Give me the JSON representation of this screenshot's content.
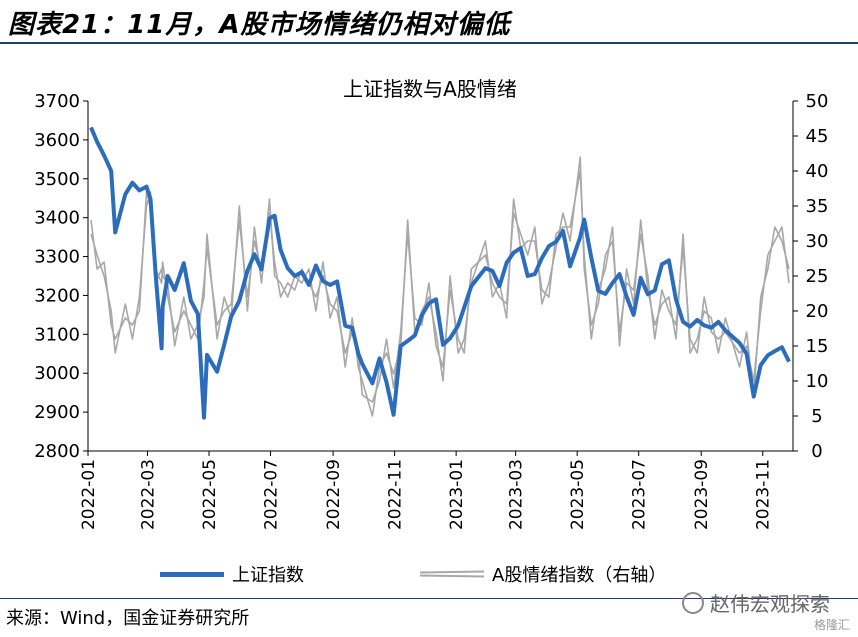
{
  "header": {
    "figure_title": "图表21：11月，A股市场情绪仍相对偏低"
  },
  "chart_data": {
    "type": "line",
    "title": "上证指数与A股情绪",
    "x_tick_labels": [
      "2022-01",
      "2022-03",
      "2022-05",
      "2022-07",
      "2022-09",
      "2022-11",
      "2023-01",
      "2023-03",
      "2023-05",
      "2023-07",
      "2023-09",
      "2023-11"
    ],
    "x_range": [
      "2022-01-01",
      "2023-12-01"
    ],
    "left_axis": {
      "ylim": [
        2800,
        3700
      ],
      "ticks": [
        2800,
        2900,
        3000,
        3100,
        3200,
        3300,
        3400,
        3500,
        3600,
        3700
      ]
    },
    "right_axis": {
      "ylim": [
        0,
        50
      ],
      "ticks": [
        0,
        5,
        10,
        15,
        20,
        25,
        30,
        35,
        40,
        45,
        50
      ]
    },
    "grid": false,
    "legend_position": "bottom",
    "series": [
      {
        "name": "上证指数",
        "axis": "left",
        "color": "#2b6cbd",
        "x": [
          "2022-01-04",
          "2022-01-10",
          "2022-01-17",
          "2022-01-24",
          "2022-01-28",
          "2022-02-07",
          "2022-02-14",
          "2022-02-21",
          "2022-02-28",
          "2022-03-04",
          "2022-03-09",
          "2022-03-15",
          "2022-03-16",
          "2022-03-21",
          "2022-03-28",
          "2022-04-06",
          "2022-04-13",
          "2022-04-20",
          "2022-04-26",
          "2022-04-29",
          "2022-05-09",
          "2022-05-16",
          "2022-05-23",
          "2022-05-31",
          "2022-06-08",
          "2022-06-15",
          "2022-06-22",
          "2022-06-30",
          "2022-07-05",
          "2022-07-11",
          "2022-07-18",
          "2022-07-25",
          "2022-08-01",
          "2022-08-08",
          "2022-08-15",
          "2022-08-22",
          "2022-08-29",
          "2022-09-05",
          "2022-09-13",
          "2022-09-20",
          "2022-09-26",
          "2022-09-30",
          "2022-10-10",
          "2022-10-17",
          "2022-10-24",
          "2022-10-31",
          "2022-11-07",
          "2022-11-14",
          "2022-11-21",
          "2022-11-28",
          "2022-12-05",
          "2022-12-12",
          "2022-12-19",
          "2022-12-26",
          "2023-01-03",
          "2023-01-09",
          "2023-01-16",
          "2023-01-30",
          "2023-02-06",
          "2023-02-13",
          "2023-02-20",
          "2023-02-27",
          "2023-03-06",
          "2023-03-13",
          "2023-03-20",
          "2023-03-27",
          "2023-04-03",
          "2023-04-10",
          "2023-04-17",
          "2023-04-24",
          "2023-05-04",
          "2023-05-08",
          "2023-05-15",
          "2023-05-22",
          "2023-05-29",
          "2023-06-05",
          "2023-06-12",
          "2023-06-19",
          "2023-06-26",
          "2023-07-03",
          "2023-07-10",
          "2023-07-17",
          "2023-07-24",
          "2023-07-31",
          "2023-08-07",
          "2023-08-14",
          "2023-08-21",
          "2023-08-28",
          "2023-09-04",
          "2023-09-11",
          "2023-09-18",
          "2023-09-25",
          "2023-10-09",
          "2023-10-16",
          "2023-10-23",
          "2023-10-30",
          "2023-11-06",
          "2023-11-13",
          "2023-11-20",
          "2023-11-27"
        ],
        "values": [
          3632,
          3595,
          3560,
          3520,
          3362,
          3460,
          3490,
          3470,
          3480,
          3448,
          3256,
          3064,
          3170,
          3250,
          3214,
          3283,
          3186,
          3152,
          2886,
          3047,
          3004,
          3073,
          3146,
          3186,
          3263,
          3306,
          3267,
          3398,
          3405,
          3317,
          3270,
          3250,
          3260,
          3227,
          3277,
          3237,
          3227,
          3236,
          3122,
          3117,
          3051,
          3024,
          2974,
          3038,
          2977,
          2893,
          3070,
          3083,
          3097,
          3149,
          3180,
          3190,
          3073,
          3090,
          3123,
          3169,
          3224,
          3270,
          3263,
          3224,
          3284,
          3310,
          3322,
          3250,
          3255,
          3296,
          3327,
          3338,
          3366,
          3275,
          3350,
          3395,
          3297,
          3212,
          3204,
          3232,
          3255,
          3197,
          3150,
          3245,
          3203,
          3213,
          3280,
          3290,
          3189,
          3132,
          3120,
          3137,
          3123,
          3117,
          3132,
          3110,
          3078,
          3050,
          2940,
          3021,
          3046,
          3057,
          3067,
          3030
        ]
      },
      {
        "name": "A股情绪指数（右轴）",
        "axis": "right",
        "color": "#a8a8a8",
        "x": [
          "2022-01-04",
          "2022-01-10",
          "2022-01-17",
          "2022-01-24",
          "2022-01-28",
          "2022-02-07",
          "2022-02-14",
          "2022-02-21",
          "2022-02-28",
          "2022-03-04",
          "2022-03-09",
          "2022-03-15",
          "2022-03-16",
          "2022-03-21",
          "2022-03-28",
          "2022-04-06",
          "2022-04-13",
          "2022-04-20",
          "2022-04-26",
          "2022-04-29",
          "2022-05-09",
          "2022-05-16",
          "2022-05-23",
          "2022-05-31",
          "2022-06-08",
          "2022-06-15",
          "2022-06-22",
          "2022-06-30",
          "2022-07-05",
          "2022-07-11",
          "2022-07-18",
          "2022-07-25",
          "2022-08-01",
          "2022-08-08",
          "2022-08-15",
          "2022-08-22",
          "2022-08-29",
          "2022-09-05",
          "2022-09-13",
          "2022-09-20",
          "2022-09-26",
          "2022-09-30",
          "2022-10-10",
          "2022-10-17",
          "2022-10-24",
          "2022-10-31",
          "2022-11-07",
          "2022-11-14",
          "2022-11-21",
          "2022-11-28",
          "2022-12-05",
          "2022-12-12",
          "2022-12-19",
          "2022-12-26",
          "2023-01-03",
          "2023-01-09",
          "2023-01-16",
          "2023-01-30",
          "2023-02-06",
          "2023-02-13",
          "2023-02-20",
          "2023-02-27",
          "2023-03-06",
          "2023-03-13",
          "2023-03-20",
          "2023-03-27",
          "2023-04-03",
          "2023-04-10",
          "2023-04-17",
          "2023-04-24",
          "2023-05-04",
          "2023-05-08",
          "2023-05-15",
          "2023-05-22",
          "2023-05-29",
          "2023-06-05",
          "2023-06-12",
          "2023-06-19",
          "2023-06-26",
          "2023-07-03",
          "2023-07-10",
          "2023-07-17",
          "2023-07-24",
          "2023-07-31",
          "2023-08-07",
          "2023-08-14",
          "2023-08-21",
          "2023-08-28",
          "2023-09-04",
          "2023-09-11",
          "2023-09-18",
          "2023-09-25",
          "2023-10-09",
          "2023-10-16",
          "2023-10-23",
          "2023-10-30",
          "2023-11-06",
          "2023-11-13",
          "2023-11-20",
          "2023-11-27"
        ],
        "values": [
          33,
          26,
          27,
          18,
          16,
          19,
          18,
          20,
          37,
          35,
          26,
          24,
          27,
          22,
          17,
          20,
          18,
          16,
          24,
          29,
          18,
          20,
          21,
          33,
          22,
          30,
          26,
          34,
          27,
          22,
          24,
          23,
          26,
          24,
          22,
          25,
          21,
          20,
          14,
          17,
          14,
          8,
          7,
          10,
          16,
          9,
          17,
          31,
          19,
          18,
          24,
          15,
          12,
          23,
          16,
          14,
          26,
          28,
          24,
          22,
          21,
          34,
          31,
          28,
          32,
          21,
          24,
          29,
          34,
          30,
          42,
          26,
          18,
          21,
          28,
          30,
          17,
          24,
          23,
          31,
          25,
          16,
          23,
          20,
          18,
          29,
          16,
          14,
          22,
          17,
          16,
          17,
          14,
          15,
          10,
          20,
          28,
          30,
          32,
          24
        ]
      }
    ]
  },
  "legend": {
    "series1_label": "上证指数",
    "series2_label": "A股情绪指数（右轴）"
  },
  "footer": {
    "source": "来源：Wind，国金证券研究所",
    "watermark": "赵伟宏观探索",
    "watermark_sub": "格隆汇"
  }
}
